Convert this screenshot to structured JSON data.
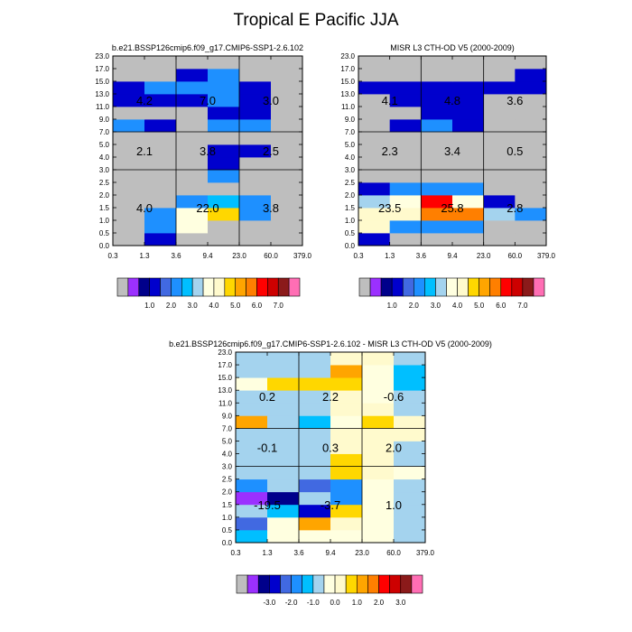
{
  "figure": {
    "title": "Tropical E Pacific JJA"
  },
  "palette": {
    "colors": [
      "#bebebe",
      "#9b30ff",
      "#00008b",
      "#0000cd",
      "#4169e1",
      "#1e90ff",
      "#00bfff",
      "#a4d3ee",
      "#ffffe0",
      "#fffacd",
      "#ffd700",
      "#ffa500",
      "#ff7f00",
      "#ff0000",
      "#cd0000",
      "#8b1a1a",
      "#ff6eb4"
    ],
    "abs_bounds": [
      0,
      0.5,
      1.0,
      1.5,
      2.0,
      2.5,
      3.0,
      3.5,
      4.0,
      4.5,
      5.0,
      5.5,
      6.0,
      6.5,
      7.0,
      7.5
    ],
    "diff_bounds": [
      -3.5,
      -3.0,
      -2.5,
      -2.0,
      -1.5,
      -1.0,
      -0.5,
      0.0,
      0.5,
      1.0,
      1.5,
      2.0,
      2.5,
      3.0,
      3.5,
      4.0
    ]
  },
  "chart_data": [
    {
      "type": "heatmap",
      "title": "b.e21.BSSP126cmip6.f09_g17.CMIP6-SSP1-2.6.102",
      "x_ticks": [
        "0.3",
        "1.3",
        "3.6",
        "9.4",
        "23.0",
        "60.0",
        "379.0"
      ],
      "y_ticks": [
        "0.0",
        "0.5",
        "1.0",
        "1.5",
        "2.0",
        "2.5",
        "3.0",
        "4.0",
        "5.0",
        "7.0",
        "9.0",
        "11.0",
        "13.0",
        "15.0",
        "17.0",
        "23.0"
      ],
      "x_dividers": [
        "3.6",
        "23.0"
      ],
      "y_dividers": [
        "3.0",
        "7.0"
      ],
      "grid": [
        [
          0,
          1.0,
          0,
          0,
          0,
          0
        ],
        [
          0,
          2.0,
          3.5,
          0,
          0,
          0
        ],
        [
          0,
          2.0,
          3.5,
          4.5,
          2.0,
          0
        ],
        [
          0,
          0,
          2.0,
          2.5,
          2.0,
          0
        ],
        [
          0,
          0,
          0,
          0,
          0,
          0
        ],
        [
          0,
          0,
          0,
          2.0,
          0,
          0
        ],
        [
          0,
          0,
          0,
          1.0,
          0,
          0
        ],
        [
          0,
          0,
          0,
          1.0,
          1.0,
          0
        ],
        [
          0,
          0,
          0,
          0,
          0,
          0
        ],
        [
          2.0,
          1.0,
          0,
          2.0,
          2.0,
          0
        ],
        [
          0,
          0,
          0,
          1.0,
          1.0,
          0
        ],
        [
          1.0,
          1.0,
          1.0,
          2.0,
          1.0,
          0
        ],
        [
          1.0,
          2.0,
          2.0,
          2.0,
          1.0,
          0
        ],
        [
          0,
          0,
          1.0,
          2.0,
          0,
          0
        ],
        [
          0,
          0,
          0,
          0,
          0,
          0
        ]
      ],
      "annotations": [
        {
          "x": "1.3",
          "y": "12.0",
          "text": "4.2"
        },
        {
          "x": "9.4",
          "y": "12.0",
          "text": "7.0"
        },
        {
          "x": "60.0",
          "y": "12.0",
          "text": "3.0"
        },
        {
          "x": "1.3",
          "y": "4.5",
          "text": "2.1"
        },
        {
          "x": "9.4",
          "y": "4.5",
          "text": "3.8"
        },
        {
          "x": "60.0",
          "y": "4.5",
          "text": "2.5"
        },
        {
          "x": "1.3",
          "y": "1.5",
          "text": "4.0"
        },
        {
          "x": "9.4",
          "y": "1.5",
          "text": "22.0"
        },
        {
          "x": "60.0",
          "y": "1.5",
          "text": "3.8"
        }
      ],
      "colorbar_labels": [
        "1.0",
        "2.0",
        "3.0",
        "4.0",
        "5.0",
        "6.0",
        "7.0"
      ]
    },
    {
      "type": "heatmap",
      "title": "MISR L3 CTH-OD V5 (2000-2009)",
      "x_ticks": [
        "0.3",
        "1.3",
        "3.6",
        "9.4",
        "23.0",
        "60.0",
        "379.0"
      ],
      "y_ticks": [
        "0.0",
        "0.5",
        "1.0",
        "1.5",
        "2.0",
        "2.5",
        "3.0",
        "4.0",
        "5.0",
        "7.0",
        "9.0",
        "11.0",
        "13.0",
        "15.0",
        "17.0",
        "23.0"
      ],
      "x_dividers": [
        "3.6",
        "23.0"
      ],
      "y_dividers": [
        "3.0",
        "7.0"
      ],
      "grid": [
        [
          1.0,
          0,
          0,
          0,
          0,
          0
        ],
        [
          4.0,
          2.0,
          2.0,
          2.0,
          0,
          0
        ],
        [
          4.0,
          4.0,
          5.5,
          5.5,
          3.0,
          2.0
        ],
        [
          3.0,
          3.5,
          6.0,
          3.5,
          1.0,
          0
        ],
        [
          1.0,
          2.0,
          2.0,
          2.0,
          0,
          0
        ],
        [
          0,
          0,
          0,
          0,
          0,
          0
        ],
        [
          0,
          0,
          0,
          0,
          0,
          0
        ],
        [
          0,
          0,
          0,
          0,
          0,
          0
        ],
        [
          0,
          0,
          0,
          0,
          0,
          0
        ],
        [
          0,
          1.0,
          2.0,
          1.0,
          0,
          0
        ],
        [
          0,
          0,
          1.0,
          1.0,
          0,
          0
        ],
        [
          0,
          1.0,
          1.0,
          1.0,
          0,
          0
        ],
        [
          1.0,
          1.0,
          1.0,
          1.0,
          1.0,
          1.0
        ],
        [
          0,
          0,
          0,
          0,
          0,
          1.0
        ],
        [
          0,
          0,
          0,
          0,
          0,
          0
        ]
      ],
      "annotations": [
        {
          "x": "1.3",
          "y": "12.0",
          "text": "4.1"
        },
        {
          "x": "9.4",
          "y": "12.0",
          "text": "4.8"
        },
        {
          "x": "60.0",
          "y": "12.0",
          "text": "3.6"
        },
        {
          "x": "1.3",
          "y": "4.5",
          "text": "2.3"
        },
        {
          "x": "9.4",
          "y": "4.5",
          "text": "3.4"
        },
        {
          "x": "60.0",
          "y": "4.5",
          "text": "0.5"
        },
        {
          "x": "1.3",
          "y": "1.5",
          "text": "23.5"
        },
        {
          "x": "9.4",
          "y": "1.5",
          "text": "25.8"
        },
        {
          "x": "60.0",
          "y": "1.5",
          "text": "2.8"
        }
      ],
      "colorbar_labels": [
        "1.0",
        "2.0",
        "3.0",
        "4.0",
        "5.0",
        "6.0",
        "7.0"
      ]
    },
    {
      "type": "heatmap",
      "title": "b.e21.BSSP126cmip6.f09_g17.CMIP6-SSP1-2.6.102 - MISR L3 CTH-OD V5 (2000-2009)",
      "x_ticks": [
        "0.3",
        "1.3",
        "3.6",
        "9.4",
        "23.0",
        "60.0",
        "379.0"
      ],
      "y_ticks": [
        "0.0",
        "0.5",
        "1.0",
        "1.5",
        "2.0",
        "2.5",
        "3.0",
        "4.0",
        "5.0",
        "7.0",
        "9.0",
        "11.0",
        "13.0",
        "15.0",
        "17.0",
        "23.0"
      ],
      "x_dividers": [
        "3.6",
        "23.0"
      ],
      "y_dividers": [
        "3.0",
        "7.0"
      ],
      "grid": [
        [
          -0.7,
          0.2,
          0.2,
          0.2,
          0.2,
          -0.3
        ],
        [
          -1.7,
          0.2,
          1.7,
          0.7,
          0.2,
          -0.3
        ],
        [
          -0.3,
          -0.7,
          -2.2,
          1.2,
          0.2,
          -0.3
        ],
        [
          -3.2,
          -2.7,
          -0.3,
          -1.2,
          0.2,
          -0.3
        ],
        [
          -1.2,
          -0.3,
          -1.7,
          -1.2,
          0.2,
          -0.3
        ],
        [
          -0.3,
          -0.3,
          -0.3,
          1.2,
          0.7,
          0.2
        ],
        [
          -0.3,
          -0.3,
          -0.3,
          1.2,
          0.7,
          -0.3
        ],
        [
          -0.3,
          -0.3,
          -0.3,
          0.7,
          0.7,
          -0.3
        ],
        [
          -0.3,
          -0.3,
          -0.3,
          0.7,
          0.7,
          0.7
        ],
        [
          1.7,
          -0.3,
          -0.7,
          0.2,
          1.2,
          0.7
        ],
        [
          -0.3,
          -0.3,
          -0.3,
          0.7,
          0.7,
          -0.3
        ],
        [
          -0.3,
          -0.3,
          -0.3,
          0.7,
          0.2,
          -0.3
        ],
        [
          0.2,
          1.2,
          1.2,
          1.2,
          0.2,
          -0.7
        ],
        [
          -0.3,
          -0.3,
          -0.3,
          1.7,
          0.2,
          -0.7
        ],
        [
          -0.3,
          -0.3,
          -0.3,
          0.7,
          0.7,
          -0.3
        ]
      ],
      "annotations": [
        {
          "x": "1.3",
          "y": "12.0",
          "text": "0.2"
        },
        {
          "x": "9.4",
          "y": "12.0",
          "text": "2.2"
        },
        {
          "x": "60.0",
          "y": "12.0",
          "text": "-0.6"
        },
        {
          "x": "1.3",
          "y": "4.5",
          "text": "-0.1"
        },
        {
          "x": "9.4",
          "y": "4.5",
          "text": "0.3"
        },
        {
          "x": "60.0",
          "y": "4.5",
          "text": "2.0"
        },
        {
          "x": "1.3",
          "y": "1.5",
          "text": "-19.5"
        },
        {
          "x": "9.4",
          "y": "1.5",
          "text": "-3.7"
        },
        {
          "x": "60.0",
          "y": "1.5",
          "text": "1.0"
        }
      ],
      "colorbar_labels": [
        "-3.0",
        "-2.0",
        "-1.0",
        "0.0",
        "1.0",
        "2.0",
        "3.0"
      ]
    }
  ]
}
